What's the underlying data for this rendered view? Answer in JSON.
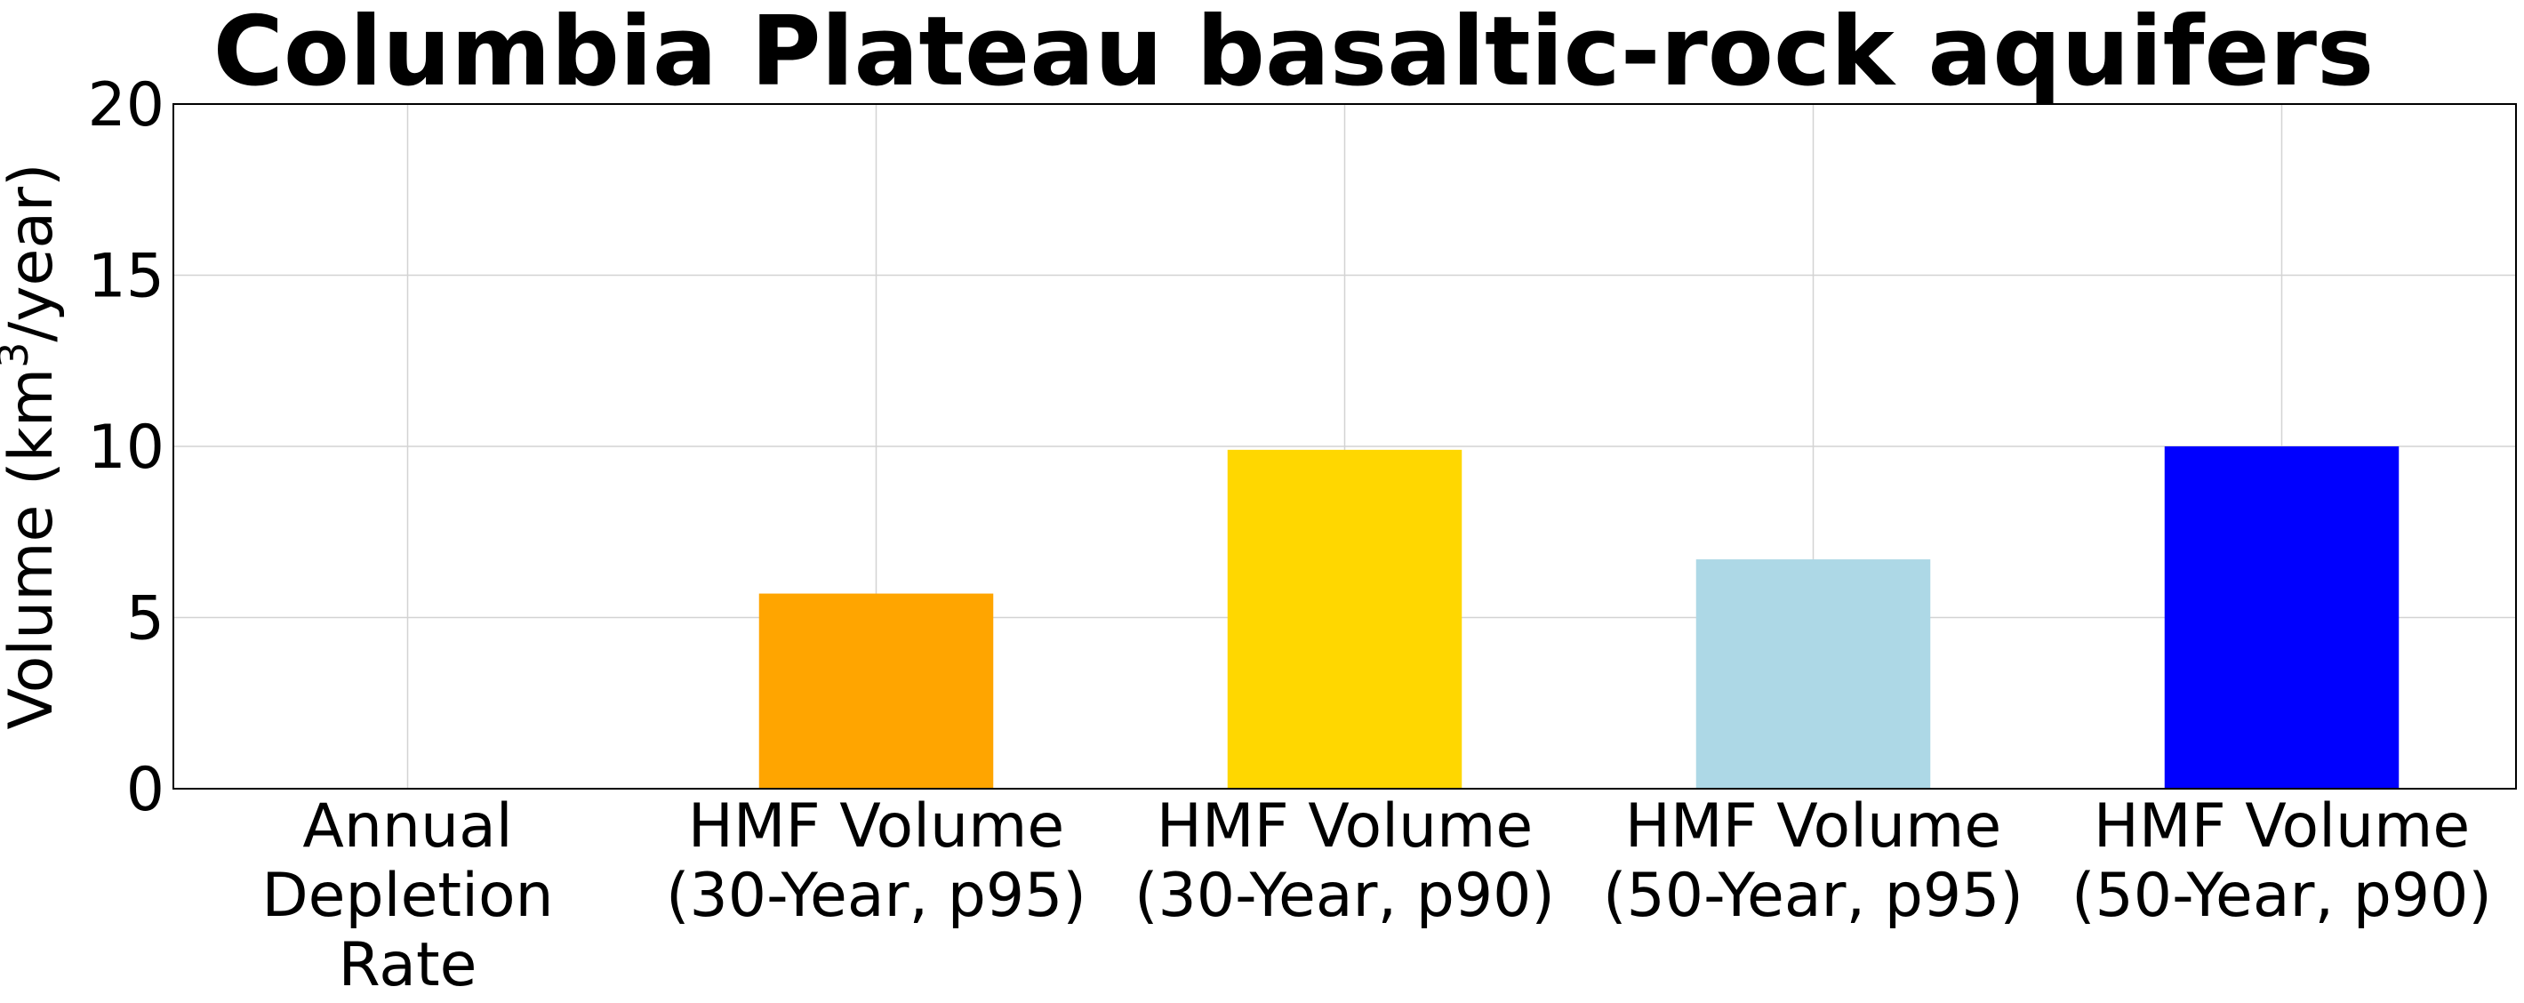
{
  "chart_data": {
    "type": "bar",
    "title": "Columbia Plateau basaltic-rock aquifers",
    "xlabel": "",
    "ylabel": "Volume (km³/year)",
    "ylim": [
      0,
      20
    ],
    "yticks": [
      0,
      5,
      10,
      15,
      20
    ],
    "ytick_labels": [
      "0",
      "5",
      "10",
      "15",
      "20"
    ],
    "grid": true,
    "categories": [
      "Annual\nDepletion\nRate",
      "HMF Volume\n(30-Year, p95)",
      "HMF Volume\n(30-Year, p90)",
      "HMF Volume\n(50-Year, p95)",
      "HMF Volume\n(50-Year, p90)"
    ],
    "values": [
      0,
      5.7,
      9.9,
      6.7,
      10.0
    ],
    "colors": [
      "#1f77b4",
      "#ffa500",
      "#ffd700",
      "#add8e6",
      "#0000ff"
    ]
  }
}
